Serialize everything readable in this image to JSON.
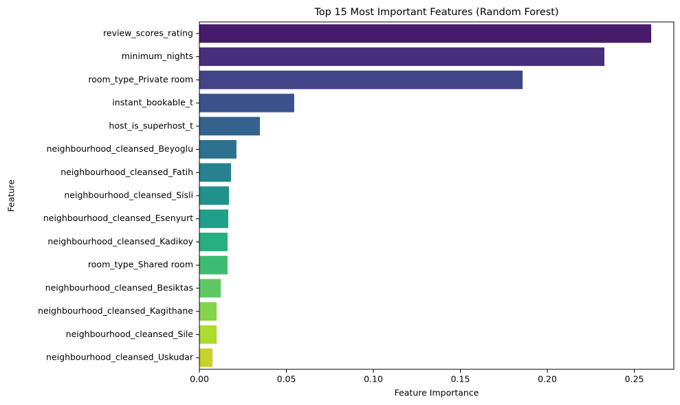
{
  "chart_data": {
    "type": "barh",
    "title": "Top 15 Most Important Features (Random Forest)",
    "x_label": "Feature Importance",
    "y_label": "Feature",
    "categories": [
      "review_scores_rating",
      "minimum_nights",
      "room_type_Private room",
      "instant_bookable_t",
      "host_is_superhost_t",
      "neighbourhood_cleansed_Beyoglu",
      "neighbourhood_cleansed_Fatih",
      "neighbourhood_cleansed_Sisli",
      "neighbourhood_cleansed_Esenyurt",
      "neighbourhood_cleansed_Kadikoy",
      "room_type_Shared room",
      "neighbourhood_cleansed_Besiktas",
      "neighbourhood_cleansed_Kagithane",
      "neighbourhood_cleansed_Sile",
      "neighbourhood_cleansed_Uskudar"
    ],
    "values": [
      0.2597,
      0.2328,
      0.1858,
      0.0545,
      0.0348,
      0.0213,
      0.0182,
      0.017,
      0.0166,
      0.0162,
      0.0162,
      0.0123,
      0.0099,
      0.0099,
      0.0075
    ],
    "colors": [
      "#481a6c",
      "#472f7d",
      "#414487",
      "#3b528b",
      "#33638d",
      "#2c728e",
      "#26828e",
      "#21918c",
      "#1fa088",
      "#28ae80",
      "#3fbc73",
      "#5ec962",
      "#84d44b",
      "#addc30",
      "#c8d22a"
    ],
    "xlim": [
      0,
      0.2727
    ],
    "xticks": [
      {
        "value": 0,
        "label": "0.00"
      },
      0.05,
      {
        "value": 0.1,
        "label": "0.10"
      },
      0.15,
      {
        "value": 0.2,
        "label": "0.20"
      },
      0.25
    ],
    "grid": false
  }
}
